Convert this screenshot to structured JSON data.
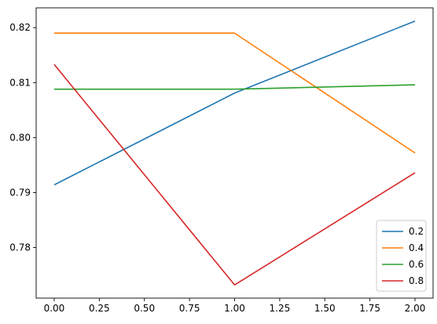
{
  "chart_data": {
    "type": "line",
    "title": "",
    "xlabel": "",
    "ylabel": "",
    "x": [
      0,
      1,
      2
    ],
    "xlim": [
      -0.1,
      2.1
    ],
    "ylim": [
      0.7708,
      0.8236
    ],
    "xticks": [
      "0.00",
      "0.25",
      "0.50",
      "0.75",
      "1.00",
      "1.25",
      "1.50",
      "1.75",
      "2.00"
    ],
    "xtick_values": [
      0,
      0.25,
      0.5,
      0.75,
      1.0,
      1.25,
      1.5,
      1.75,
      2.0
    ],
    "yticks": [
      "0.78",
      "0.79",
      "0.80",
      "0.81",
      "0.82"
    ],
    "ytick_values": [
      0.78,
      0.79,
      0.8,
      0.81,
      0.82
    ],
    "grid": false,
    "legend_position": "lower-right",
    "series": [
      {
        "name": "0.2",
        "color": "#1f77b4",
        "values": [
          0.7914,
          0.8081,
          0.8212
        ]
      },
      {
        "name": "0.4",
        "color": "#ff7f0e",
        "values": [
          0.819,
          0.819,
          0.7972
        ]
      },
      {
        "name": "0.6",
        "color": "#2ca02c",
        "values": [
          0.8088,
          0.8088,
          0.8096
        ]
      },
      {
        "name": "0.8",
        "color": "#d62728",
        "values": [
          0.8133,
          0.7732,
          0.7936
        ]
      }
    ]
  }
}
